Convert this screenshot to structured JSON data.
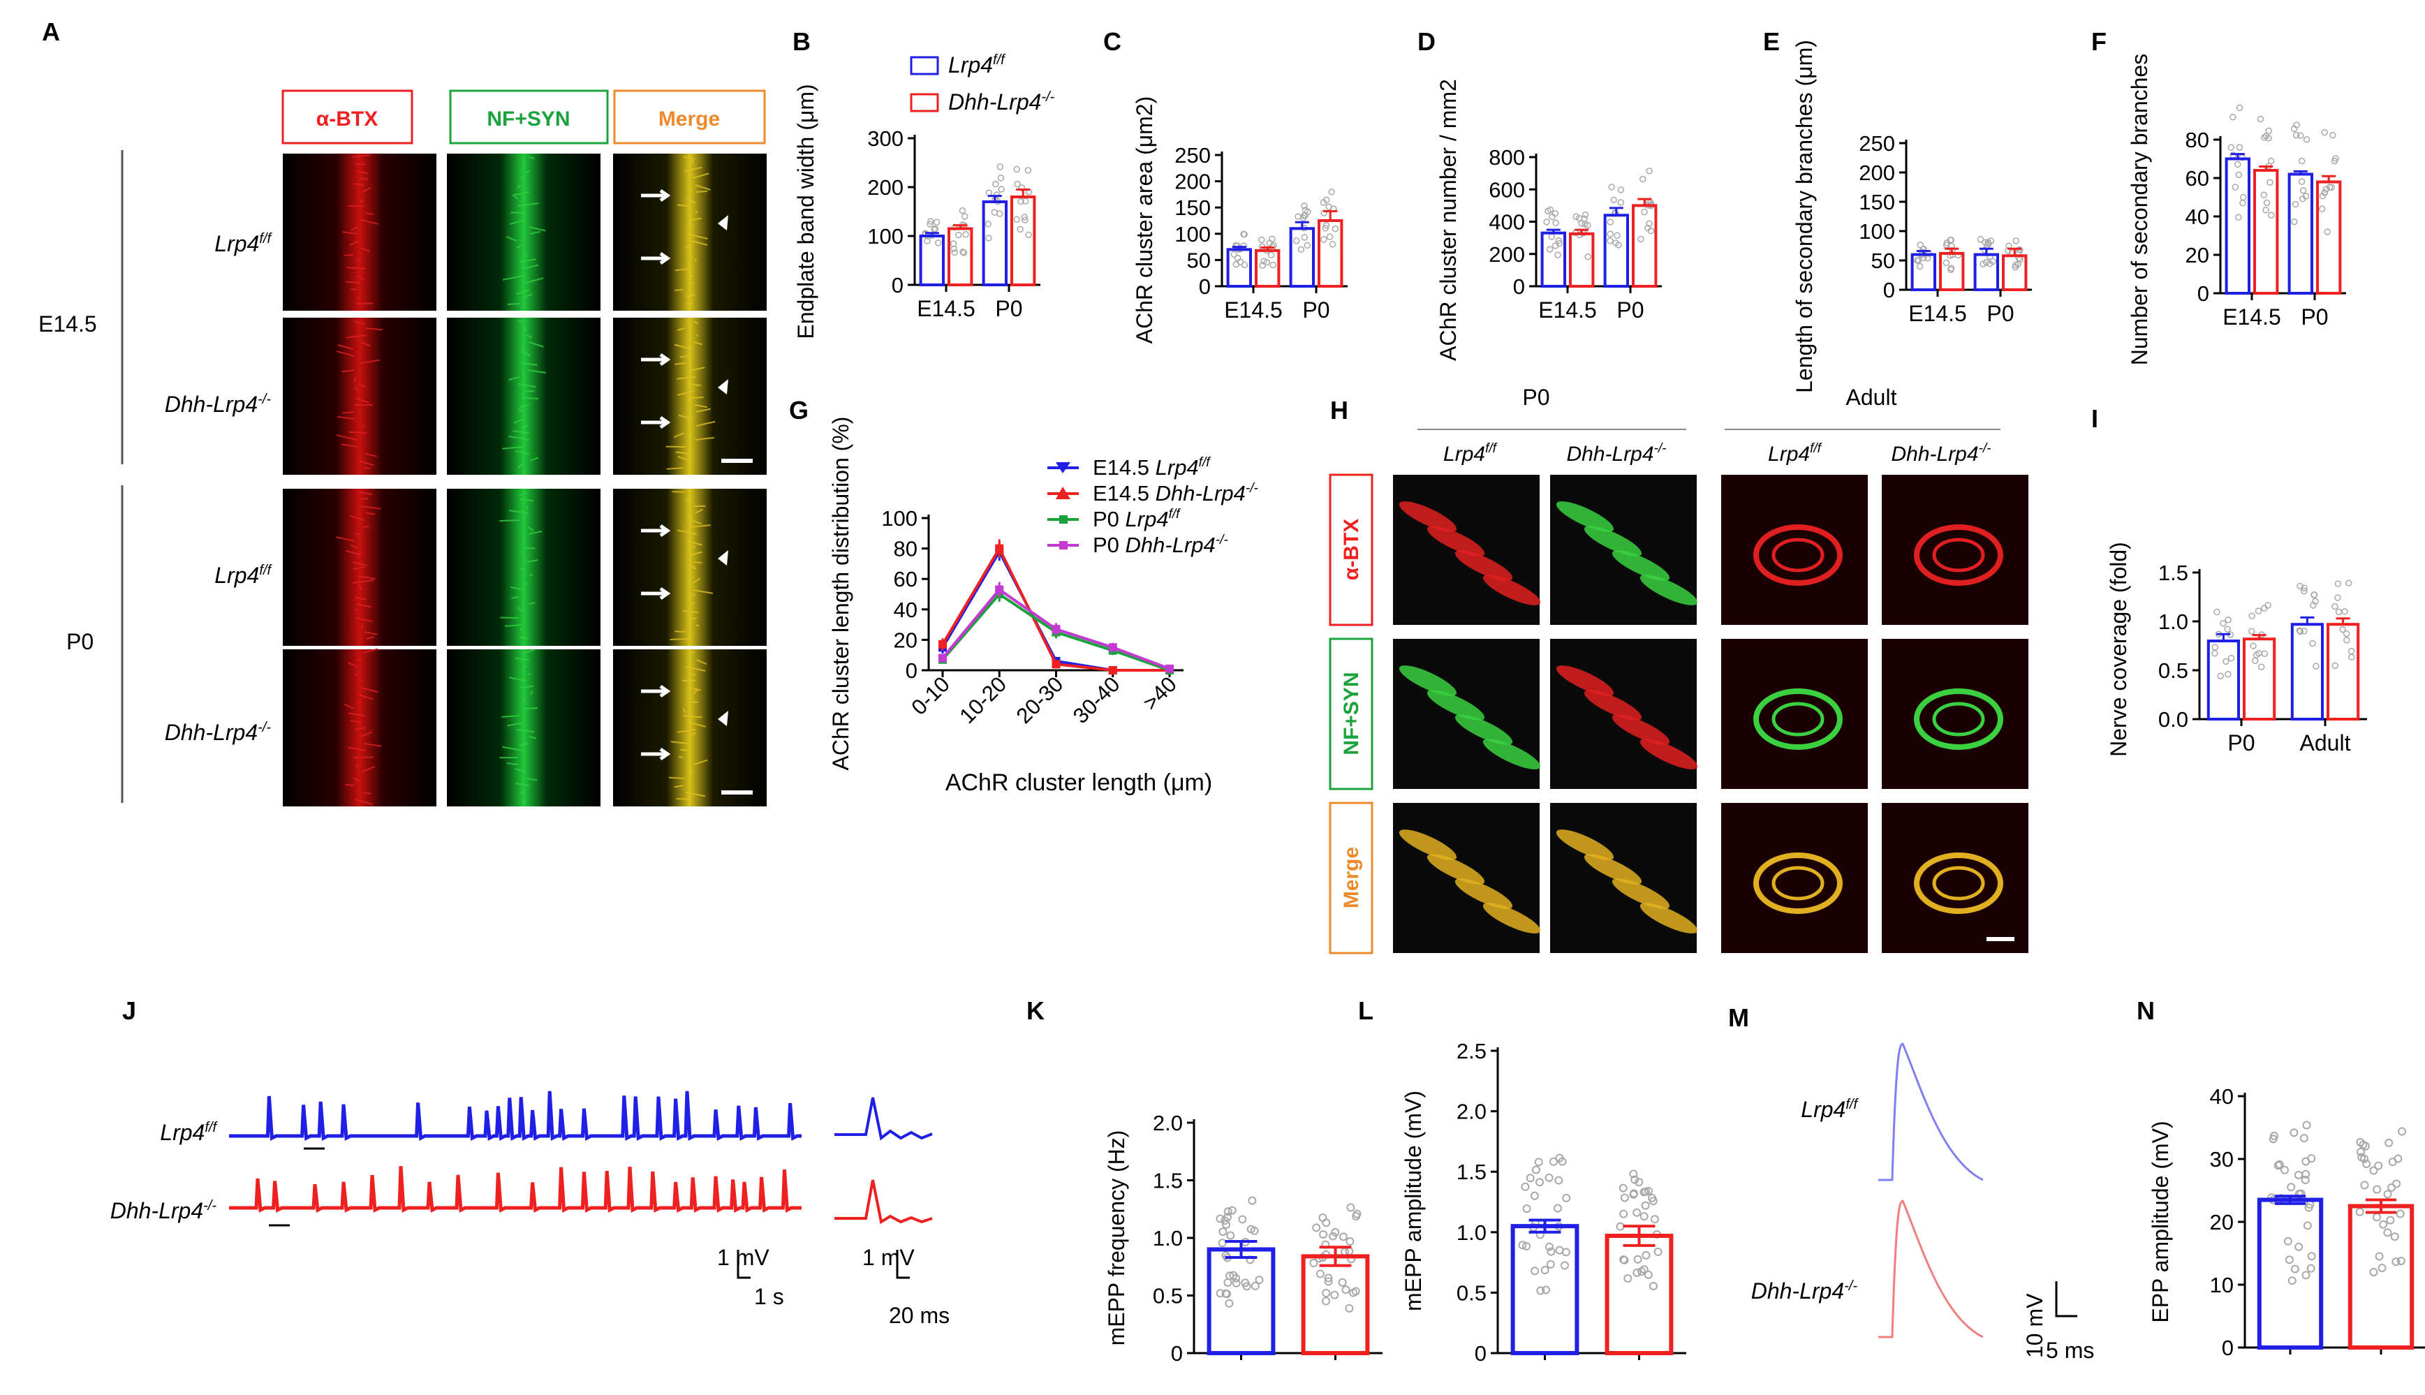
{
  "colors": {
    "ctrl": "#1f1fe6",
    "mut": "#ee2020",
    "green": "#1aa33c",
    "purple": "#c23ad0",
    "orange": "#ee8a2c",
    "dot": "#a8a8a8"
  },
  "genotypes": {
    "ctrl": "Lrp4",
    "ctrl_sup": "f/f",
    "mut": "Dhh-Lrp4",
    "mut_sup": "-/-"
  },
  "panelA": {
    "letter": "A",
    "headers": [
      "α-BTX",
      "NF+SYN",
      "Merge"
    ],
    "stages": [
      "E14.5",
      "P0"
    ]
  },
  "panelH": {
    "letter": "H",
    "stages": [
      "P0",
      "Adult"
    ],
    "rows": [
      "α-BTX",
      "NF+SYN",
      "Merge"
    ]
  },
  "panelJ": {
    "letter": "J",
    "scale_long": {
      "v": "1 mV",
      "t": "1 s"
    },
    "scale_short": {
      "v": "1 mV",
      "t": "20 ms"
    }
  },
  "panelM": {
    "letter": "M",
    "scale": {
      "v": "10 mV",
      "t": "5 ms"
    }
  },
  "chart_data": [
    {
      "id": "B",
      "type": "bar",
      "ylabel": "Endplate band width (μm)",
      "ylim": [
        0,
        300
      ],
      "yticks": [
        0,
        100,
        200,
        300
      ],
      "categories": [
        "E14.5",
        "P0"
      ],
      "series": [
        {
          "name": "Lrp4f/f",
          "values": [
            100,
            170
          ],
          "err": [
            6,
            12
          ]
        },
        {
          "name": "Dhh-Lrp4-/-",
          "values": [
            115,
            180
          ],
          "err": [
            7,
            15
          ]
        }
      ]
    },
    {
      "id": "C",
      "type": "bar",
      "ylabel": "AChR cluster area (μm2)",
      "ylim": [
        0,
        250
      ],
      "yticks": [
        0,
        50,
        100,
        150,
        200,
        250
      ],
      "categories": [
        "E14.5",
        "P0"
      ],
      "series": [
        {
          "values": [
            70,
            110
          ],
          "err": [
            5,
            12
          ]
        },
        {
          "values": [
            68,
            125
          ],
          "err": [
            6,
            18
          ]
        }
      ]
    },
    {
      "id": "D",
      "type": "bar",
      "ylabel": "AChR cluster number / mm2",
      "ylim": [
        0,
        800
      ],
      "yticks": [
        0,
        200,
        400,
        600,
        800
      ],
      "categories": [
        "E14.5",
        "P0"
      ],
      "series": [
        {
          "values": [
            330,
            440
          ],
          "err": [
            20,
            45
          ]
        },
        {
          "values": [
            325,
            500
          ],
          "err": [
            25,
            40
          ]
        }
      ]
    },
    {
      "id": "E",
      "type": "bar",
      "ylabel": "Length of secondary branches (μm)",
      "ylim": [
        0,
        250
      ],
      "yticks": [
        0,
        50,
        100,
        150,
        200,
        250
      ],
      "categories": [
        "E14.5",
        "P0"
      ],
      "series": [
        {
          "values": [
            60,
            60
          ],
          "err": [
            6,
            10
          ]
        },
        {
          "values": [
            62,
            58
          ],
          "err": [
            8,
            12
          ]
        }
      ]
    },
    {
      "id": "F",
      "type": "bar",
      "ylabel": "Number of secondary branches",
      "ylim": [
        0,
        80
      ],
      "yticks": [
        0,
        20,
        40,
        60,
        80
      ],
      "categories": [
        "E14.5",
        "P0"
      ],
      "series": [
        {
          "values": [
            70,
            62
          ],
          "err": [
            2.5,
            1.5
          ]
        },
        {
          "values": [
            64,
            58
          ],
          "err": [
            2,
            3
          ]
        }
      ]
    },
    {
      "id": "G",
      "type": "line",
      "xlabel": "AChR cluster length (μm)",
      "ylabel": "AChR cluster length distribution (%)",
      "ylim": [
        0,
        100
      ],
      "yticks": [
        0,
        20,
        40,
        60,
        80,
        100
      ],
      "categories": [
        "0-10",
        "10-20",
        "20-30",
        "30-40",
        ">40"
      ],
      "series": [
        {
          "name": "E14.5 Lrp4f/f",
          "values": [
            15,
            78,
            6,
            0,
            0
          ],
          "err": [
            4,
            6,
            2,
            0,
            0
          ]
        },
        {
          "name": "E14.5 Dhh-Lrp4-/-",
          "values": [
            17,
            80,
            4,
            0,
            0
          ],
          "err": [
            4,
            6,
            2,
            0,
            0
          ]
        },
        {
          "name": "P0 Lrp4f/f",
          "values": [
            7,
            50,
            25,
            13,
            0
          ],
          "err": [
            2,
            5,
            4,
            3,
            0
          ]
        },
        {
          "name": "P0 Dhh-Lrp4-/-",
          "values": [
            8,
            53,
            27,
            15,
            1
          ],
          "err": [
            2,
            5,
            4,
            3,
            0
          ]
        }
      ]
    },
    {
      "id": "I",
      "type": "bar",
      "ylabel": "Nerve coverage (fold)",
      "ylim": [
        0,
        1.5
      ],
      "yticks": [
        "0.0",
        "0.5",
        "1.0",
        "1.5"
      ],
      "categories": [
        "P0",
        "Adult"
      ],
      "series": [
        {
          "values": [
            0.8,
            0.97
          ],
          "err": [
            0.07,
            0.07
          ]
        },
        {
          "values": [
            0.82,
            0.97
          ],
          "err": [
            0.04,
            0.06
          ]
        }
      ]
    },
    {
      "id": "K",
      "type": "bar",
      "ylabel": "mEPP frequency (Hz)",
      "ylim": [
        0,
        2.0
      ],
      "yticks": [
        "0",
        "0.5",
        "1.0",
        "1.5",
        "2.0"
      ],
      "categories": [
        "",
        ""
      ],
      "series": [
        {
          "values": [
            0.9,
            0.84
          ],
          "err": [
            0.07,
            0.08
          ]
        }
      ]
    },
    {
      "id": "L",
      "type": "bar",
      "ylabel": "mEPP amplitude (mV)",
      "ylim": [
        0,
        2.5
      ],
      "yticks": [
        "0",
        "0.5",
        "1.0",
        "1.5",
        "2.0",
        "2.5"
      ],
      "categories": [
        "",
        ""
      ],
      "series": [
        {
          "values": [
            1.05,
            0.97
          ],
          "err": [
            0.05,
            0.08
          ]
        }
      ]
    },
    {
      "id": "N",
      "type": "bar",
      "ylabel": "EPP amplitude (mV)",
      "ylim": [
        0,
        40
      ],
      "yticks": [
        "0",
        "10",
        "20",
        "30",
        "40"
      ],
      "categories": [
        "",
        ""
      ],
      "series": [
        {
          "values": [
            23.5,
            22.5
          ],
          "err": [
            0.6,
            1.0
          ]
        }
      ]
    }
  ]
}
